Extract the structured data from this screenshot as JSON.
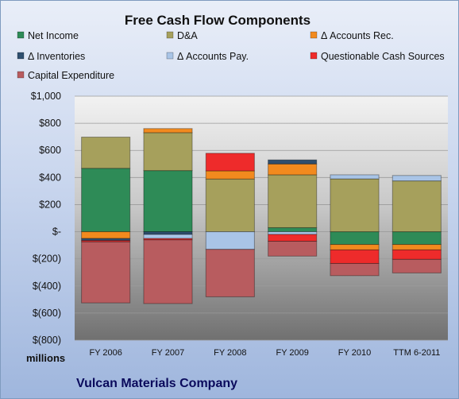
{
  "chart_data": {
    "type": "bar",
    "stacked": true,
    "title": "Free Cash Flow Components",
    "categories": [
      "FY 2006",
      "FY 2007",
      "FY 2008",
      "FY 2009",
      "FY 2010",
      "TTM 6-2011"
    ],
    "ylim": [
      -800,
      1000
    ],
    "y_ticks": [
      {
        "value": 1000,
        "label": "$1,000"
      },
      {
        "value": 800,
        "label": "$800"
      },
      {
        "value": 600,
        "label": "$600"
      },
      {
        "value": 400,
        "label": "$400"
      },
      {
        "value": 200,
        "label": "$200"
      },
      {
        "value": 0,
        "label": "$-"
      },
      {
        "value": -200,
        "label": "$(200)"
      },
      {
        "value": -400,
        "label": "$(400)"
      },
      {
        "value": -600,
        "label": "$(600)"
      },
      {
        "value": -800,
        "label": "$(800)"
      }
    ],
    "units_label": "millions",
    "grid": true,
    "legend_position": "top",
    "series": [
      {
        "name": "Net Income",
        "color": "#2e8b57",
        "values": [
          468,
          451,
          0,
          30,
          -94,
          -94
        ]
      },
      {
        "name": "D&A",
        "color": "#a6a05c",
        "values": [
          230,
          280,
          389,
          390,
          390,
          375
        ]
      },
      {
        "name": "Δ Accounts Rec.",
        "color": "#f28a1e",
        "values": [
          -50,
          30,
          60,
          80,
          -40,
          -40
        ]
      },
      {
        "name": "Δ Inventories",
        "color": "#2f4f6f",
        "values": [
          -15,
          -20,
          0,
          30,
          0,
          0
        ]
      },
      {
        "name": "Δ Accounts Pay.",
        "color": "#a9c4e6",
        "values": [
          0,
          -30,
          -130,
          -20,
          30,
          40
        ]
      },
      {
        "name": "Questionable Cash Sources",
        "color": "#ee2b2b",
        "values": [
          -10,
          -10,
          130,
          -50,
          -100,
          -70
        ]
      },
      {
        "name": "Capital Expenditure",
        "color": "#b85c5f",
        "values": [
          -450,
          -470,
          -350,
          -110,
          -90,
          -100
        ]
      }
    ]
  },
  "footer": {
    "company": "Vulcan Materials Company"
  }
}
